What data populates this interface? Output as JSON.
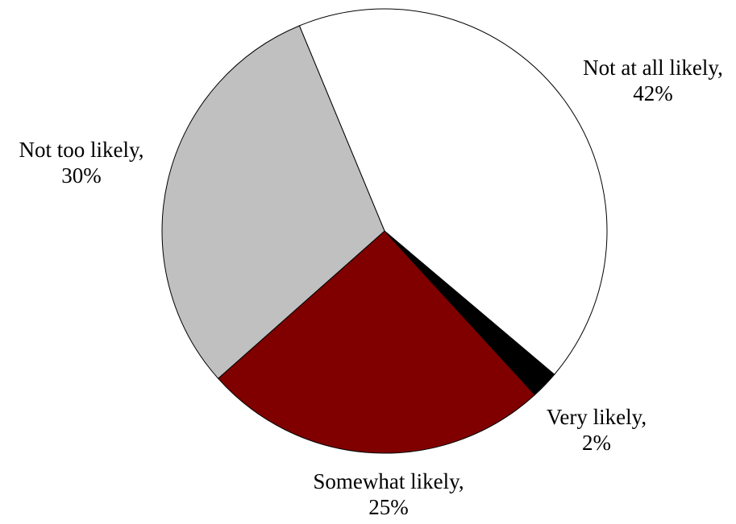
{
  "chart_data": {
    "type": "pie",
    "title": "",
    "categories": [
      "Not at all likely",
      "Very likely",
      "Somewhat likely",
      "Not too likely"
    ],
    "values": [
      42,
      2,
      25,
      30
    ],
    "units": "%",
    "colors": [
      "#ffffff",
      "#000000",
      "#800000",
      "#c0c0c0"
    ],
    "stroke_color": "#000000",
    "label_lines": [
      [
        "Not at all likely,",
        "42%"
      ],
      [
        "Very likely,",
        "2%"
      ],
      [
        "Somewhat likely,",
        "25%"
      ],
      [
        "Not too likely,",
        "30%"
      ]
    ],
    "legend": "none",
    "start_direction": "clockwise from top, beginning with Not at all likely"
  }
}
